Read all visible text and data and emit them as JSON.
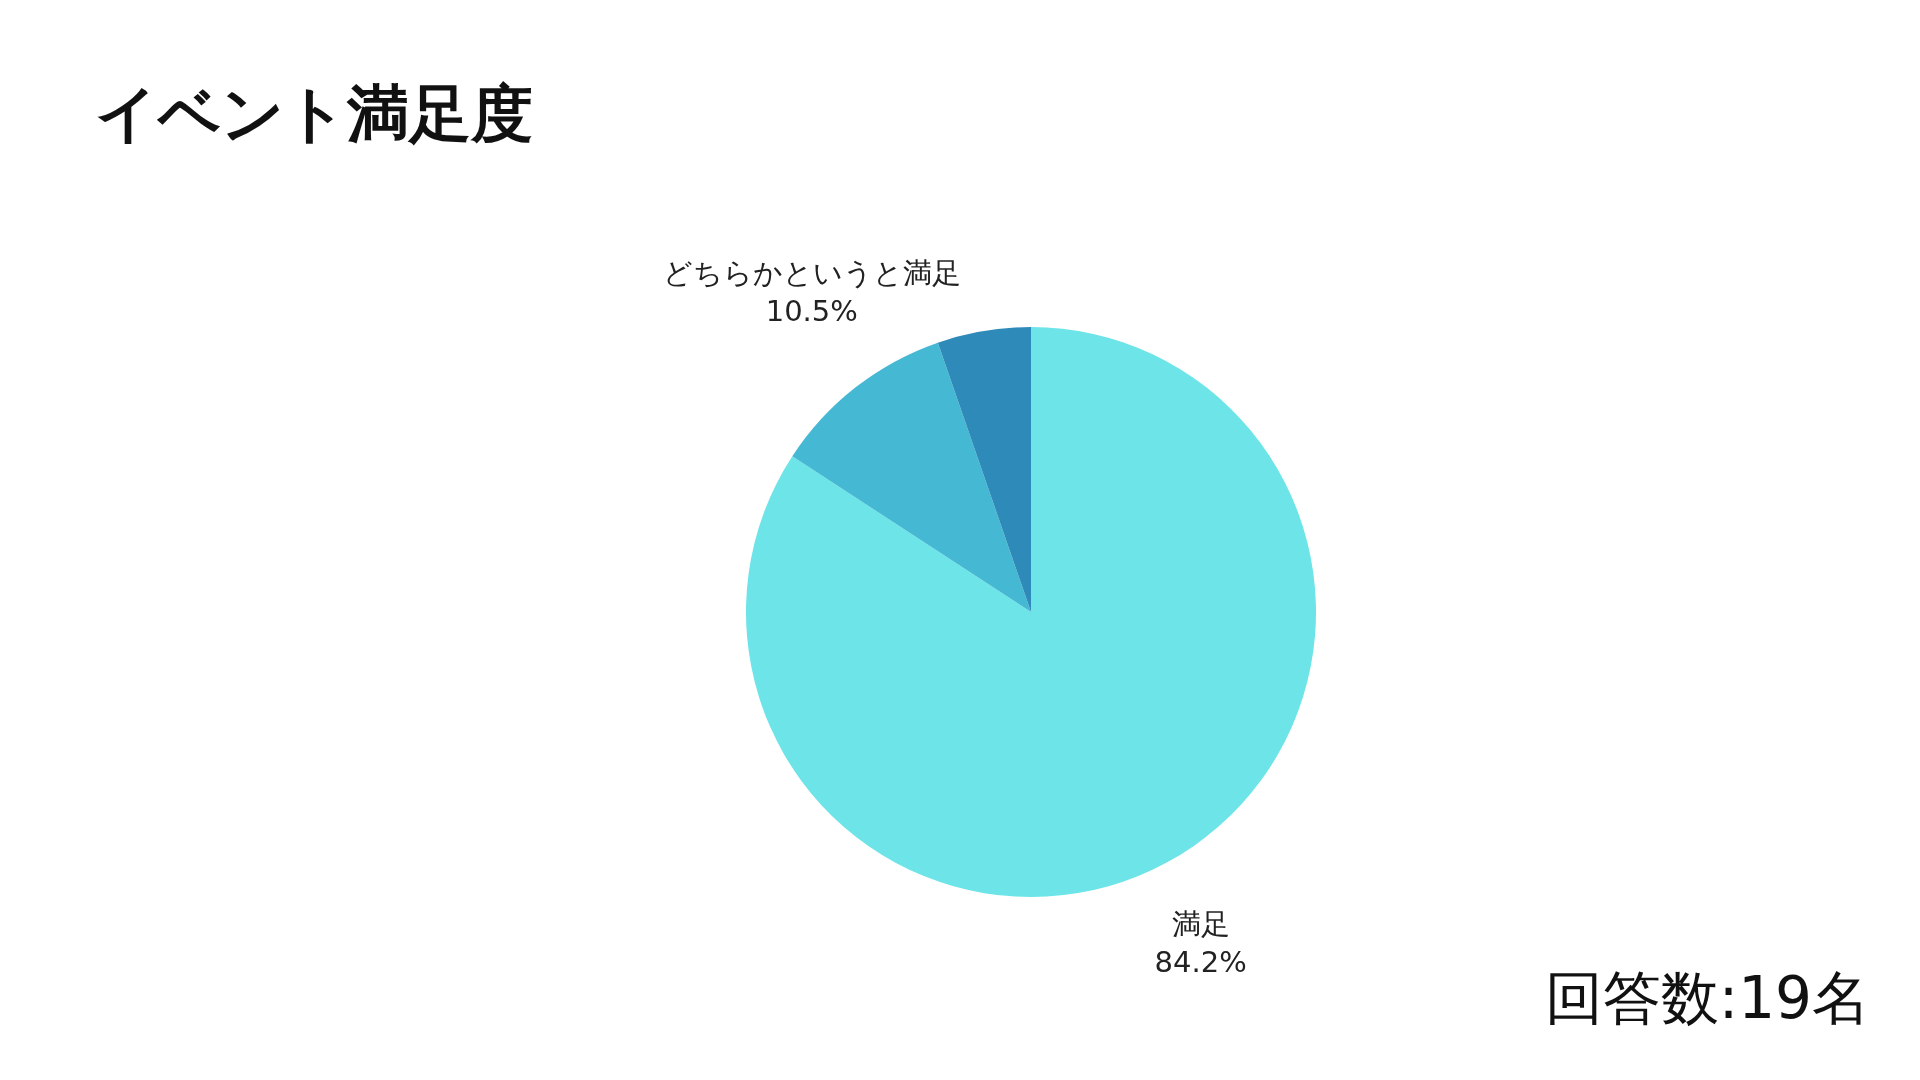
{
  "chart_data": {
    "type": "pie",
    "title": "イベント満足度",
    "categories": [
      "満足",
      "どちらかというと満足",
      null
    ],
    "values": [
      84.2,
      10.5,
      5.3
    ],
    "value_labels": [
      "84.2%",
      "10.5%",
      null
    ],
    "colors": [
      "#6ce4e8",
      "#45b8d4",
      "#2e8ab8"
    ],
    "annotations": [
      "回答数:19名"
    ]
  }
}
